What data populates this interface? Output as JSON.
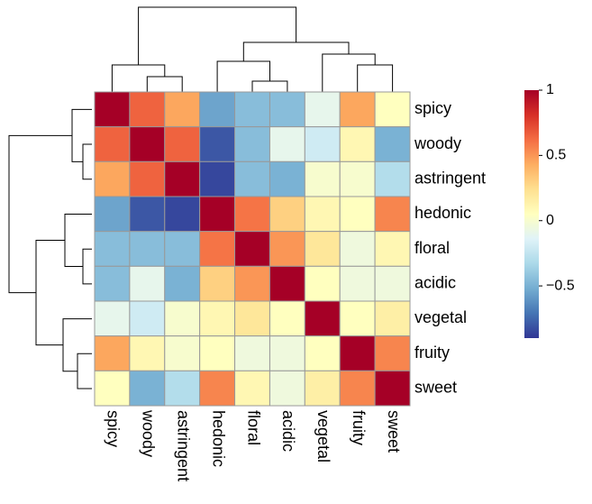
{
  "chart_data": {
    "type": "heatmap",
    "rows": [
      "spicy",
      "woody",
      "astringent",
      "hedonic",
      "floral",
      "acidic",
      "vegetal",
      "fruity",
      "sweet"
    ],
    "columns": [
      "spicy",
      "woody",
      "astringent",
      "hedonic",
      "floral",
      "acidic",
      "vegetal",
      "fruity",
      "sweet"
    ],
    "values": [
      [
        1,
        0.65,
        0.45,
        -0.55,
        -0.45,
        -0.45,
        -0.1,
        0.45,
        0.05
      ],
      [
        0.65,
        1,
        0.65,
        -0.8,
        -0.45,
        -0.1,
        -0.2,
        0.1,
        -0.5
      ],
      [
        0.45,
        0.65,
        1,
        -0.85,
        -0.45,
        -0.5,
        0,
        0,
        -0.3
      ],
      [
        -0.55,
        -0.8,
        -0.85,
        1,
        0.6,
        0.3,
        0.1,
        0.05,
        0.55
      ],
      [
        -0.45,
        -0.45,
        -0.45,
        0.6,
        1,
        0.5,
        0.2,
        -0.05,
        0.1
      ],
      [
        -0.45,
        -0.1,
        -0.5,
        0.3,
        0.5,
        1,
        0.05,
        -0.05,
        -0.05
      ],
      [
        -0.1,
        -0.2,
        0,
        0.1,
        0.2,
        0.05,
        1,
        0.05,
        0.15
      ],
      [
        0.45,
        0.1,
        0,
        0.05,
        -0.05,
        -0.05,
        0.05,
        1,
        0.55
      ],
      [
        0.05,
        -0.5,
        -0.3,
        0.55,
        0.1,
        -0.05,
        0.15,
        0.55,
        1
      ]
    ],
    "colormap": "RdYlBu_r",
    "zlim": [
      -0.9,
      1
    ],
    "zticks": [
      {
        "value": -0.5,
        "label": "−0.5"
      },
      0,
      0.5,
      1
    ]
  }
}
